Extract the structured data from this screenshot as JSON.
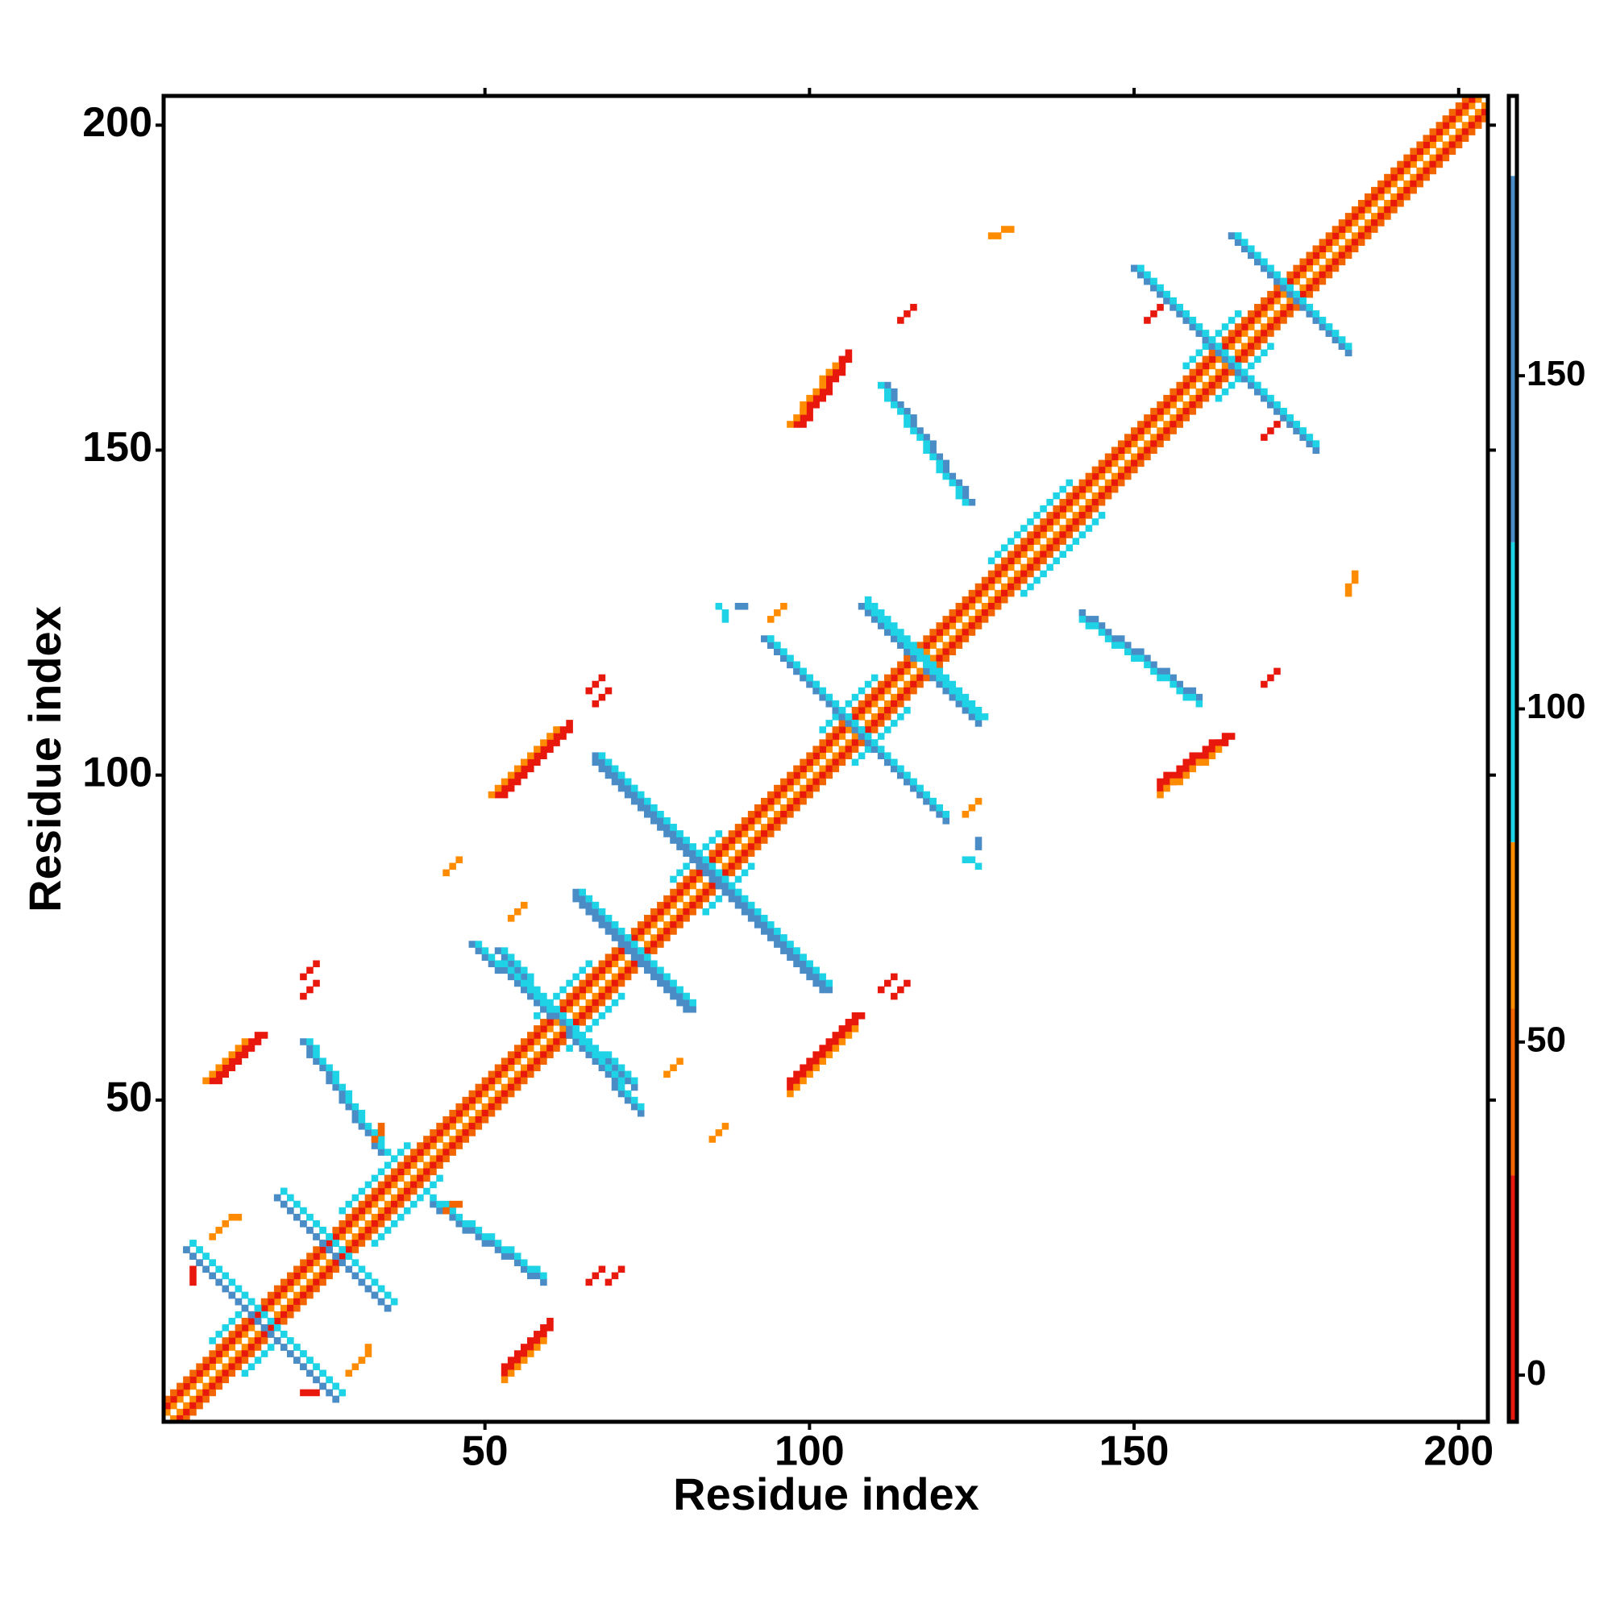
{
  "chart_data": {
    "type": "heatmap",
    "xlabel": "Residue index",
    "ylabel": "Residue index",
    "xlim": [
      0.5,
      204.5
    ],
    "ylim": [
      0.5,
      204.5
    ],
    "xticks": [
      50,
      100,
      150,
      200
    ],
    "yticks": [
      50,
      100,
      150,
      200
    ],
    "symmetric": true,
    "colorbar": {
      "clim": [
        -7,
        192
      ],
      "ticks": [
        0,
        50,
        100,
        150
      ],
      "bounds": [
        -7,
        30,
        55,
        80,
        125,
        180,
        192
      ],
      "colors": [
        "#e8180c",
        "#f26500",
        "#ff8c00",
        "#1ed3e6",
        "#4a8cc6",
        "#ffffff"
      ]
    },
    "segments": [
      [
        1,
        2,
        203,
        204,
        65
      ],
      [
        1,
        3,
        202,
        204,
        10
      ],
      [
        1,
        4,
        201,
        204,
        40
      ],
      [
        8,
        13,
        14,
        19,
        100
      ],
      [
        28,
        33,
        38,
        43,
        100
      ],
      [
        58,
        63,
        66,
        71,
        100
      ],
      [
        79,
        84,
        86,
        91,
        100
      ],
      [
        102,
        107,
        110,
        115,
        100
      ],
      [
        128,
        133,
        140,
        145,
        100
      ],
      [
        158,
        163,
        166,
        171,
        100
      ],
      [
        4,
        27,
        27,
        4,
        150
      ],
      [
        5,
        28,
        28,
        5,
        100
      ],
      [
        18,
        35,
        35,
        18,
        150
      ],
      [
        19,
        36,
        36,
        19,
        100
      ],
      [
        22,
        59,
        34,
        42,
        150
      ],
      [
        23,
        59,
        35,
        42,
        100
      ],
      [
        48,
        74,
        73,
        52,
        150
      ],
      [
        49,
        74,
        73,
        53,
        100
      ],
      [
        64,
        82,
        81,
        64,
        150
      ],
      [
        65,
        82,
        82,
        65,
        100
      ],
      [
        67,
        103,
        102,
        67,
        150
      ],
      [
        68,
        103,
        103,
        68,
        100
      ],
      [
        93,
        121,
        120,
        94,
        150
      ],
      [
        94,
        121,
        121,
        94,
        100
      ],
      [
        108,
        126,
        126,
        109,
        150
      ],
      [
        109,
        126,
        127,
        109,
        100
      ],
      [
        142,
        125,
        160,
        112,
        150
      ],
      [
        142,
        124,
        160,
        111,
        100
      ],
      [
        150,
        178,
        178,
        150,
        150
      ],
      [
        151,
        178,
        178,
        151,
        100
      ],
      [
        165,
        183,
        183,
        165,
        150
      ],
      [
        166,
        183,
        183,
        166,
        100
      ],
      [
        8,
        53,
        15,
        60,
        10
      ],
      [
        9,
        53,
        16,
        60,
        10
      ],
      [
        7,
        53,
        13,
        59,
        65
      ],
      [
        52,
        97,
        63,
        108,
        10
      ],
      [
        53,
        97,
        63,
        107,
        10
      ],
      [
        51,
        97,
        61,
        107,
        65
      ],
      [
        98,
        154,
        106,
        165,
        10
      ],
      [
        99,
        154,
        106,
        164,
        10
      ],
      [
        97,
        154,
        104,
        163,
        65
      ],
      [
        22,
        69,
        24,
        71,
        10
      ],
      [
        66,
        113,
        68,
        115,
        10
      ],
      [
        111,
        67,
        113,
        69,
        10
      ],
      [
        114,
        170,
        116,
        172,
        10
      ],
      [
        170,
        152,
        172,
        154,
        10
      ],
      [
        22,
        5,
        24,
        5,
        10
      ],
      [
        66,
        22,
        68,
        24,
        10
      ],
      [
        44,
        85,
        46,
        87,
        65
      ],
      [
        54,
        78,
        56,
        80,
        65
      ],
      [
        33,
        44,
        34,
        46,
        40
      ],
      [
        10,
        31,
        12,
        32,
        65
      ],
      [
        29,
        8,
        31,
        10,
        65
      ],
      [
        124,
        94,
        126,
        96,
        65
      ],
      [
        128,
        183,
        131,
        184,
        65
      ],
      [
        89,
        126,
        90,
        126,
        150
      ],
      [
        124,
        87,
        126,
        86,
        100
      ]
    ]
  }
}
